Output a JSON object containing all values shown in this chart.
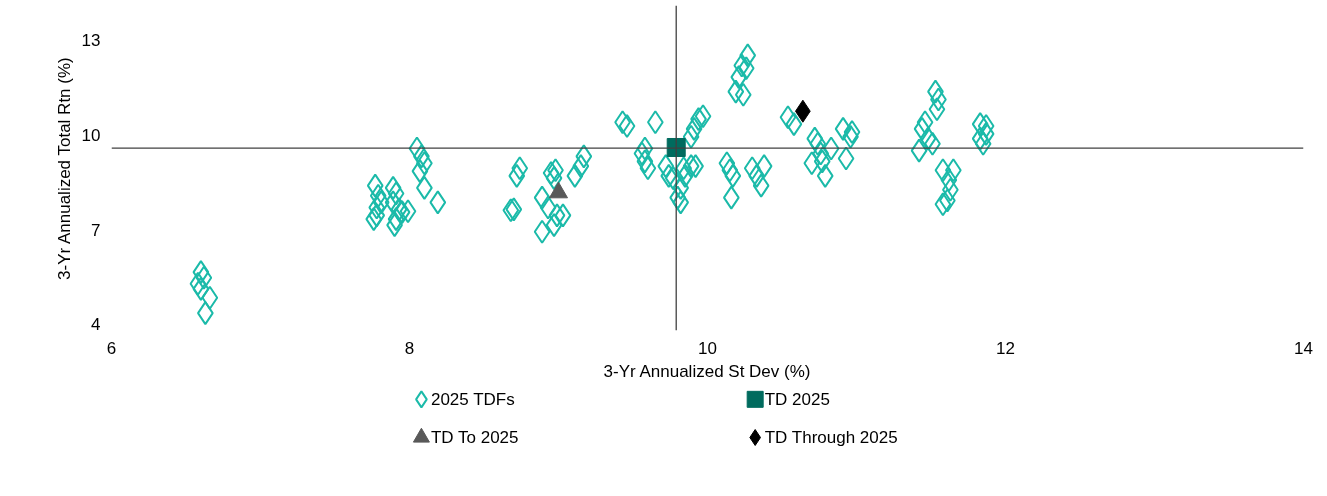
{
  "chart_data": {
    "type": "scatter",
    "xlabel": "3-Yr Annualized St Dev (%)",
    "ylabel": "3-Yr Annualized Total Rtn (%)",
    "xlim": [
      6,
      14
    ],
    "xticks": [
      6,
      8,
      10,
      12,
      14
    ],
    "ylim": [
      3.8,
      14.1
    ],
    "yticks": [
      4,
      7,
      10,
      13
    ],
    "grid": false,
    "legend": "bottom",
    "ref_lines": [
      {
        "axis": "x",
        "value": 9.79,
        "label": null,
        "color": "#404040"
      },
      {
        "axis": "y",
        "value": 9.58,
        "label": null,
        "color": "#404040"
      }
    ],
    "series": [
      {
        "name": "2025 TDFs",
        "color": "#1bbaa9",
        "marker": "diamond",
        "x": [
          6.6,
          6.62,
          6.58,
          6.6,
          6.66,
          6.63,
          7.77,
          7.79,
          7.81,
          7.78,
          7.89,
          7.91,
          7.89,
          7.93,
          7.95,
          7.99,
          7.91,
          7.9,
          7.76,
          7.78,
          8.05,
          8.08,
          8.1,
          8.07,
          8.1,
          8.19,
          8.68,
          8.7,
          8.72,
          8.74,
          8.89,
          8.93,
          8.89,
          8.97,
          8.99,
          9.03,
          8.95,
          8.98,
          8.97,
          9.11,
          9.15,
          9.17,
          9.43,
          9.46,
          9.65,
          9.58,
          9.56,
          9.58,
          9.6,
          9.72,
          9.74,
          9.84,
          9.85,
          9.89,
          9.92,
          9.82,
          9.8,
          9.82,
          9.77,
          9.97,
          9.94,
          9.91,
          9.89,
          10.13,
          10.15,
          10.17,
          10.16,
          10.3,
          10.33,
          10.36,
          10.38,
          10.27,
          10.23,
          10.21,
          10.19,
          10.24,
          10.26,
          10.54,
          10.58,
          10.72,
          10.76,
          10.77,
          10.79,
          10.83,
          10.7,
          10.74,
          10.91,
          10.96,
          10.93,
          10.97,
          11.42,
          11.44,
          11.46,
          11.48,
          11.51,
          11.53,
          11.55,
          11.54,
          11.58,
          11.62,
          11.63,
          11.58,
          11.61,
          11.65,
          11.83,
          11.87,
          11.83,
          11.85,
          11.87
        ],
        "values": [
          5.65,
          5.47,
          5.28,
          5.12,
          4.84,
          4.35,
          8.39,
          8.07,
          7.86,
          7.7,
          8.32,
          8.14,
          7.86,
          7.64,
          7.55,
          7.58,
          7.33,
          7.14,
          7.33,
          7.45,
          9.57,
          9.32,
          9.1,
          8.85,
          8.32,
          7.86,
          7.61,
          7.64,
          8.7,
          8.94,
          8.01,
          7.7,
          6.93,
          7.14,
          7.45,
          7.45,
          8.79,
          8.88,
          8.63,
          8.7,
          9.01,
          9.32,
          10.4,
          10.28,
          10.4,
          9.57,
          9.41,
          9.16,
          8.94,
          9.01,
          8.7,
          8.94,
          8.7,
          9.01,
          9.01,
          8.32,
          8.01,
          7.86,
          8.63,
          10.59,
          10.5,
          10.19,
          9.94,
          9.1,
          8.88,
          8.7,
          8.01,
          8.94,
          8.7,
          8.39,
          9.01,
          12.52,
          12.2,
          11.83,
          11.37,
          11.27,
          12.11,
          10.56,
          10.34,
          9.88,
          9.41,
          9.16,
          8.7,
          9.57,
          9.1,
          9.72,
          10.19,
          9.94,
          9.25,
          10.09,
          9.5,
          10.19,
          10.4,
          9.88,
          9.72,
          11.37,
          11.12,
          10.81,
          8.88,
          8.57,
          8.26,
          7.8,
          7.92,
          8.88,
          10.34,
          10.28,
          9.88,
          9.72,
          10.03
        ]
      },
      {
        "name": "TD 2025",
        "color": "#006b5e",
        "marker": "square",
        "x": [
          9.79
        ],
        "values": [
          9.6
        ]
      },
      {
        "name": "TD To 2025",
        "color": "#595959",
        "marker": "triangle",
        "x": [
          9.0
        ],
        "values": [
          8.17
        ]
      },
      {
        "name": "TD Through 2025",
        "color": "#000000",
        "marker": "diamond",
        "x": [
          10.64
        ],
        "values": [
          10.75
        ]
      }
    ]
  }
}
